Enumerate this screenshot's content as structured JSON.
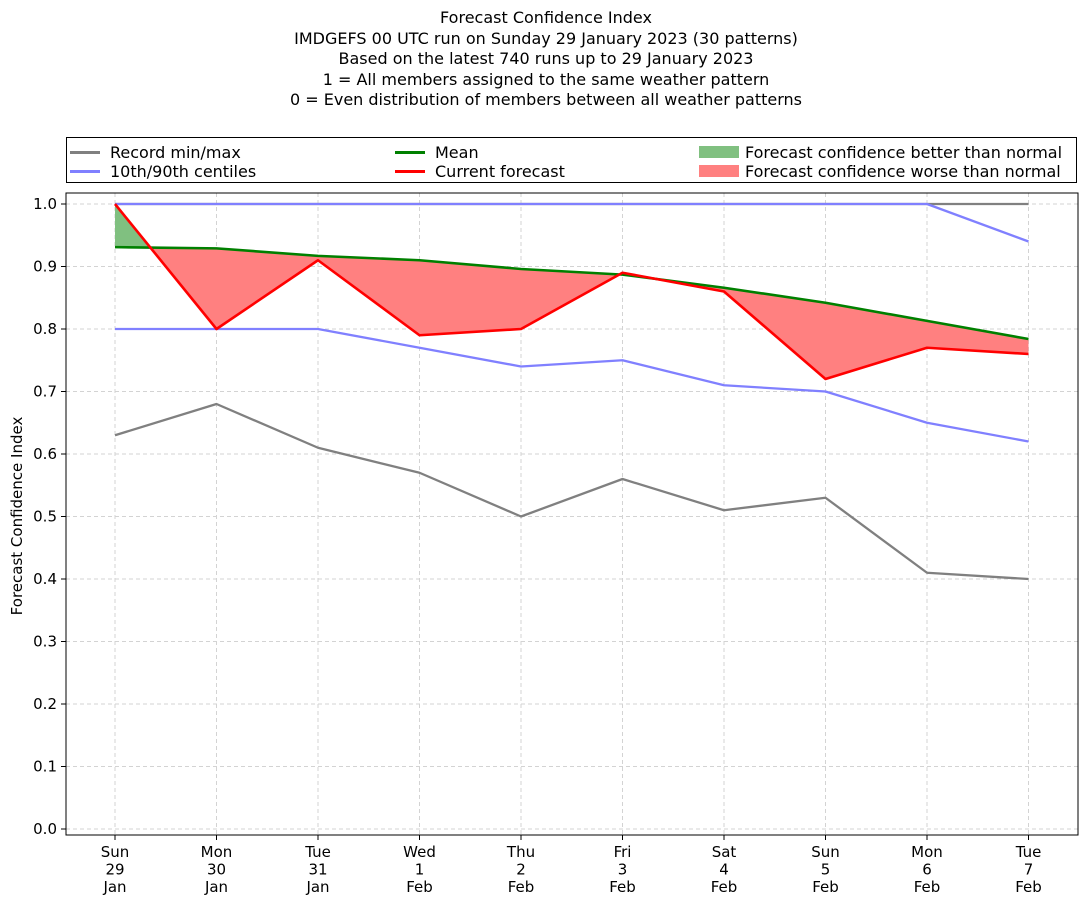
{
  "chart_data": {
    "type": "line",
    "title_lines": [
      "Forecast Confidence Index",
      "IMDGEFS 00 UTC run on Sunday 29 January 2023 (30 patterns)",
      "Based on the latest 740 runs up to 29 January 2023",
      "1 = All members assigned to the same weather pattern",
      "0 = Even distribution of members between all weather patterns"
    ],
    "xlabel": "",
    "ylabel": "Forecast Confidence Index",
    "ylim": [
      0.0,
      1.0
    ],
    "yticks": [
      "0.0",
      "0.1",
      "0.2",
      "0.3",
      "0.4",
      "0.5",
      "0.6",
      "0.7",
      "0.8",
      "0.9",
      "1.0"
    ],
    "grid": true,
    "x_categories": [
      [
        "Sun",
        "29",
        "Jan"
      ],
      [
        "Mon",
        "30",
        "Jan"
      ],
      [
        "Tue",
        "31",
        "Jan"
      ],
      [
        "Wed",
        "1",
        "Feb"
      ],
      [
        "Thu",
        "2",
        "Feb"
      ],
      [
        "Fri",
        "3",
        "Feb"
      ],
      [
        "Sat",
        "4",
        "Feb"
      ],
      [
        "Sun",
        "5",
        "Feb"
      ],
      [
        "Mon",
        "6",
        "Feb"
      ],
      [
        "Tue",
        "7",
        "Feb"
      ]
    ],
    "series": [
      {
        "name": "Record min/max",
        "key": "record_min",
        "color": "#808080",
        "values": [
          0.63,
          0.68,
          0.61,
          0.57,
          0.5,
          0.56,
          0.51,
          0.53,
          0.41,
          0.4
        ]
      },
      {
        "name": "Record min/max",
        "key": "record_max",
        "color": "#808080",
        "values": [
          1.0,
          1.0,
          1.0,
          1.0,
          1.0,
          1.0,
          1.0,
          1.0,
          1.0,
          1.0
        ]
      },
      {
        "name": "10th/90th centiles",
        "key": "p10",
        "color": "#8080ff",
        "values": [
          0.8,
          0.8,
          0.8,
          0.77,
          0.74,
          0.75,
          0.71,
          0.7,
          0.65,
          0.62
        ]
      },
      {
        "name": "10th/90th centiles",
        "key": "p90",
        "color": "#8080ff",
        "values": [
          1.0,
          1.0,
          1.0,
          1.0,
          1.0,
          1.0,
          1.0,
          1.0,
          1.0,
          0.94
        ]
      },
      {
        "name": "Mean",
        "key": "mean",
        "color": "#008000",
        "values": [
          0.931,
          0.929,
          0.917,
          0.91,
          0.896,
          0.887,
          0.866,
          0.842,
          0.813,
          0.784
        ]
      },
      {
        "name": "Current forecast",
        "key": "current",
        "color": "#ff0000",
        "values": [
          1.0,
          0.8,
          0.91,
          0.79,
          0.8,
          0.89,
          0.86,
          0.72,
          0.77,
          0.76
        ]
      }
    ],
    "fills": {
      "better": {
        "label": "Forecast confidence better than normal",
        "color": "#80c080"
      },
      "worse": {
        "label": "Forecast confidence worse than normal",
        "color": "#ff8080"
      }
    },
    "legend": {
      "placement": "top",
      "items": [
        {
          "label": "Record min/max",
          "kind": "line",
          "color": "#808080"
        },
        {
          "label": "10th/90th centiles",
          "kind": "line",
          "color": "#8080ff"
        },
        {
          "label": "Mean",
          "kind": "line",
          "color": "#008000"
        },
        {
          "label": "Current forecast",
          "kind": "line",
          "color": "#ff0000"
        },
        {
          "label": "Forecast confidence better than normal",
          "kind": "patch",
          "color": "#80c080"
        },
        {
          "label": "Forecast confidence worse than normal",
          "kind": "patch",
          "color": "#ff8080"
        }
      ]
    }
  }
}
